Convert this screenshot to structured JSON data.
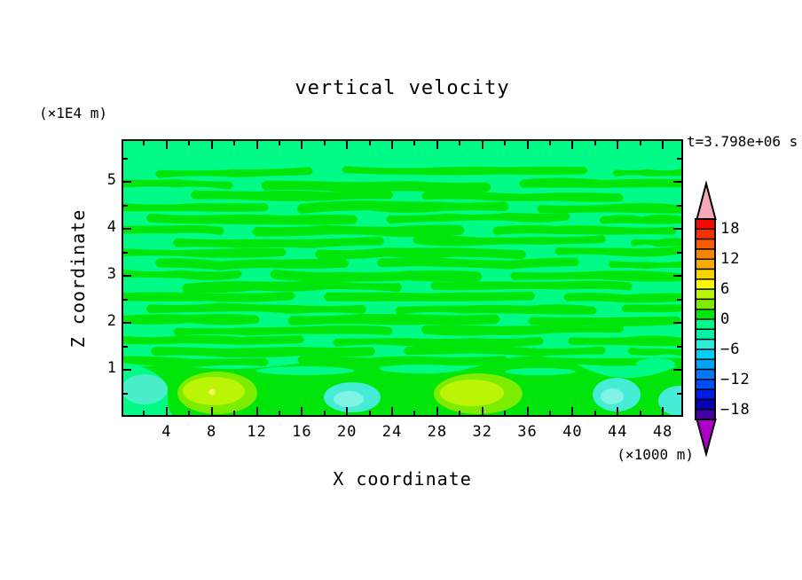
{
  "figure": {
    "title": "vertical velocity",
    "z_unit_label": "(×1E4 m)",
    "time_label": "t=3.798e+06 s"
  },
  "x_axis": {
    "label": "X coordinate",
    "unit_label": "(×1000 m)",
    "major_ticks": [
      4,
      8,
      12,
      16,
      20,
      24,
      28,
      32,
      36,
      40,
      44,
      48
    ],
    "minor_ticks": [
      2,
      6,
      10,
      14,
      18,
      22,
      26,
      30,
      34,
      38,
      42,
      46
    ],
    "range_km": [
      0,
      49.5
    ]
  },
  "z_axis": {
    "label": "Z coordinate",
    "major_ticks": [
      1,
      2,
      3,
      4,
      5
    ],
    "minor_ticks": [
      0.5,
      1.5,
      2.5,
      3.5,
      4.5,
      5.5
    ],
    "range_1e4m": [
      0,
      5.9
    ]
  },
  "colorbar": {
    "max": 20,
    "min": -20,
    "interval": 2,
    "labels": [
      {
        "text": "18",
        "value": 18
      },
      {
        "text": "12",
        "value": 12
      },
      {
        "text": "6",
        "value": 6
      },
      {
        "text": "0",
        "value": 0
      },
      {
        "text": "−6",
        "value": -6
      },
      {
        "text": "−12",
        "value": -12
      },
      {
        "text": "−18",
        "value": -18
      }
    ],
    "colors_top_to_bottom": [
      "#F80800",
      "#F83000",
      "#F85C00",
      "#F88400",
      "#F8AC00",
      "#F8D400",
      "#F8F800",
      "#BCF405",
      "#7CEC00",
      "#00E60A",
      "#00FB86",
      "#00F5A8",
      "#2BEBD9",
      "#00D0F8",
      "#00A4F8",
      "#0078F8",
      "#004CF8",
      "#001CE8",
      "#0800B8",
      "#4400A4"
    ],
    "over_arrow_color": "#F6A9B7",
    "under_arrow_color": "#AE00C8",
    "outline_color": "#000000"
  },
  "chart_data": {
    "type": "filled_contour",
    "title": "vertical velocity",
    "time_annotation": "t=3.798e+06 s",
    "x_axis": {
      "label": "X coordinate",
      "units": "×1000 m",
      "tick_labels": [
        4,
        8,
        12,
        16,
        20,
        24,
        28,
        32,
        36,
        40,
        44,
        48
      ],
      "range": [
        0,
        49.5
      ]
    },
    "z_axis": {
      "label": "Z coordinate",
      "units": "×1E4 m",
      "tick_labels": [
        1,
        2,
        3,
        4,
        5
      ],
      "range": [
        0,
        5.9
      ]
    },
    "contour_levels": {
      "min": -20,
      "max": 20,
      "interval": 2,
      "labeled_levels": [
        18,
        12,
        6,
        0,
        -6,
        -12,
        -18
      ]
    },
    "dominant_bands": [
      "0 to +2 (green streaks)",
      "-2 to 0 (spring-green background)"
    ],
    "field_summary": "Near-zero vertical velocity arranged in thin wavy horizontal bands alternating between 0..+2 and -2..0 over the whole domain; uniform -2..0 layer at the very top; stronger extrema confined below z≈0.6 (×1E4 m).",
    "features": [
      {
        "x_km": 8.5,
        "z_1e4m": 0.4,
        "type": "updraft maximum",
        "band": "+6 to +8 core, +2..+6 ring"
      },
      {
        "x_km": 31.5,
        "z_1e4m": 0.4,
        "type": "updraft maximum",
        "band": "+4 to +6 core, +2..+4 ring"
      },
      {
        "x_km": 0.8,
        "z_1e4m": 0.35,
        "type": "downdraft minimum",
        "band": "-2 to -4"
      },
      {
        "x_km": 20.5,
        "z_1e4m": 0.3,
        "type": "downdraft minimum",
        "band": "-4 to -6"
      },
      {
        "x_km": 44.0,
        "z_1e4m": 0.35,
        "type": "downdraft minimum",
        "band": "-4 to -6"
      },
      {
        "x_km": 49.5,
        "z_1e4m": 0.25,
        "type": "downdraft minimum",
        "band": "-4 to -6"
      }
    ],
    "legend_position": "right vertical colorbar with over/under arrows"
  }
}
